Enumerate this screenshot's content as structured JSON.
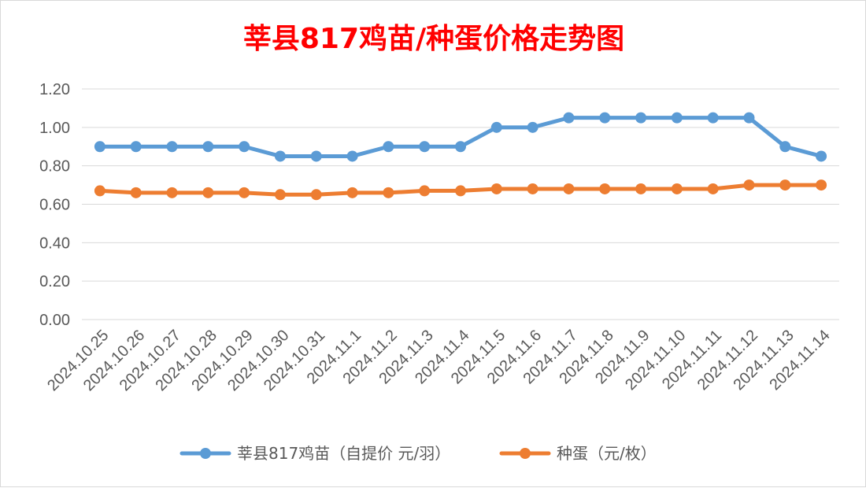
{
  "chart_data": {
    "type": "line",
    "title": "莘县817鸡苗/种蛋价格走势图",
    "title_color": "#ff0000",
    "xlabel": "",
    "ylabel": "",
    "ylim": [
      0,
      1.2
    ],
    "yticks": [
      "0.00",
      "0.20",
      "0.40",
      "0.60",
      "0.80",
      "1.00",
      "1.20"
    ],
    "grid": true,
    "legend_position": "bottom",
    "categories": [
      "2024.10.25",
      "2024.10.26",
      "2024.10.27",
      "2024.10.28",
      "2024.10.29",
      "2024.10.30",
      "2024.10.31",
      "2024.11.1",
      "2024.11.2",
      "2024.11.3",
      "2024.11.4",
      "2024.11.5",
      "2024.11.6",
      "2024.11.7",
      "2024.11.8",
      "2024.11.9",
      "2024.11.10",
      "2024.11.11",
      "2024.11.12",
      "2024.11.13",
      "2024.11.14"
    ],
    "series": [
      {
        "name": "莘县817鸡苗（自提价 元/羽）",
        "color": "#5b9bd5",
        "values": [
          0.9,
          0.9,
          0.9,
          0.9,
          0.9,
          0.85,
          0.85,
          0.85,
          0.9,
          0.9,
          0.9,
          1.0,
          1.0,
          1.05,
          1.05,
          1.05,
          1.05,
          1.05,
          1.05,
          0.9,
          0.85
        ]
      },
      {
        "name": "种蛋（元/枚）",
        "color": "#ed7d31",
        "values": [
          0.67,
          0.66,
          0.66,
          0.66,
          0.66,
          0.65,
          0.65,
          0.66,
          0.66,
          0.67,
          0.67,
          0.68,
          0.68,
          0.68,
          0.68,
          0.68,
          0.68,
          0.68,
          0.7,
          0.7,
          0.7
        ]
      }
    ]
  }
}
